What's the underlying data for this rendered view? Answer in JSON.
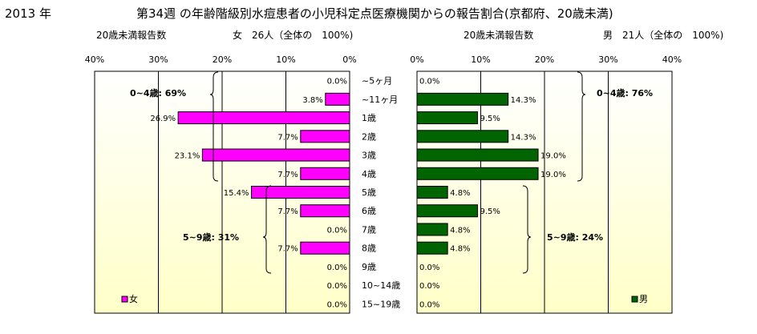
{
  "header": {
    "year": "2013 年",
    "title": "第34週 の年齢階級別水痘患者の小児科定点医療機関からの報告割合(京都府、20歳未満)"
  },
  "left_panel": {
    "count_label": "20歳未満報告数",
    "total_label": "女　26人（全体の　100%)",
    "legend_label": "女",
    "bracket_label_0_4": "0~4歳: 69%",
    "bracket_label_5_9": "5~9歳: 31%"
  },
  "right_panel": {
    "count_label": "20歳未満報告数",
    "total_label": "男　21人（全体の　100%)",
    "legend_label": "男",
    "bracket_label_0_4": "0~4歳: 76%",
    "bracket_label_5_9": "5~9歳: 24%"
  },
  "colors": {
    "female": "#ff00ff",
    "male": "#006400",
    "background_top": "#ffffff",
    "background_bottom": "#ffffc8"
  },
  "chart_data": {
    "type": "bar",
    "orientation": "horizontal-butterfly",
    "categories": [
      "~5ヶ月",
      "~11ヶ月",
      "1歳",
      "2歳",
      "3歳",
      "4歳",
      "5歳",
      "6歳",
      "7歳",
      "8歳",
      "9歳",
      "10~14歳",
      "15~19歳"
    ],
    "series": [
      {
        "name": "女",
        "values": [
          0.0,
          3.8,
          26.9,
          7.7,
          23.1,
          7.7,
          15.4,
          7.7,
          0.0,
          7.7,
          0.0,
          0.0,
          0.0
        ]
      },
      {
        "name": "男",
        "values": [
          0.0,
          14.3,
          9.5,
          14.3,
          19.0,
          19.0,
          4.8,
          9.5,
          4.8,
          4.8,
          0.0,
          0.0,
          0.0
        ]
      }
    ],
    "ticks": [
      "0%",
      "10%",
      "20%",
      "30%",
      "40%"
    ],
    "xlim": [
      0,
      40
    ],
    "unit": "%",
    "grid": true
  }
}
